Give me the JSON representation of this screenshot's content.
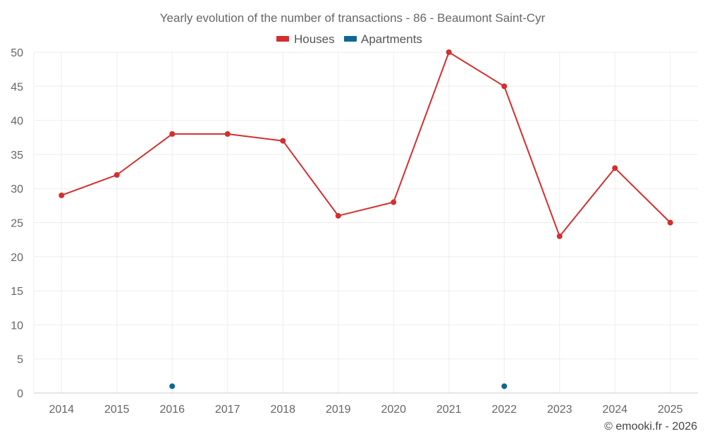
{
  "chart_data": {
    "type": "line",
    "title": "Yearly evolution of the number of transactions - 86 - Beaumont Saint-Cyr",
    "categories": [
      "2014",
      "2015",
      "2016",
      "2017",
      "2018",
      "2019",
      "2020",
      "2021",
      "2022",
      "2023",
      "2024",
      "2025"
    ],
    "series": [
      {
        "name": "Houses",
        "color": "#d32f2f",
        "values": [
          29,
          32,
          38,
          38,
          37,
          26,
          28,
          50,
          45,
          23,
          33,
          25
        ]
      },
      {
        "name": "Apartments",
        "color": "#0d6797",
        "values": [
          null,
          null,
          1,
          null,
          null,
          null,
          null,
          null,
          1,
          null,
          null,
          null
        ]
      }
    ],
    "ylim": [
      0,
      50
    ],
    "yticks": [
      0,
      5,
      10,
      15,
      20,
      25,
      30,
      35,
      40,
      45,
      50
    ],
    "grid": true,
    "legend_position": "top-center",
    "xlabel": "",
    "ylabel": ""
  },
  "credit": "© emooki.fr - 2026"
}
